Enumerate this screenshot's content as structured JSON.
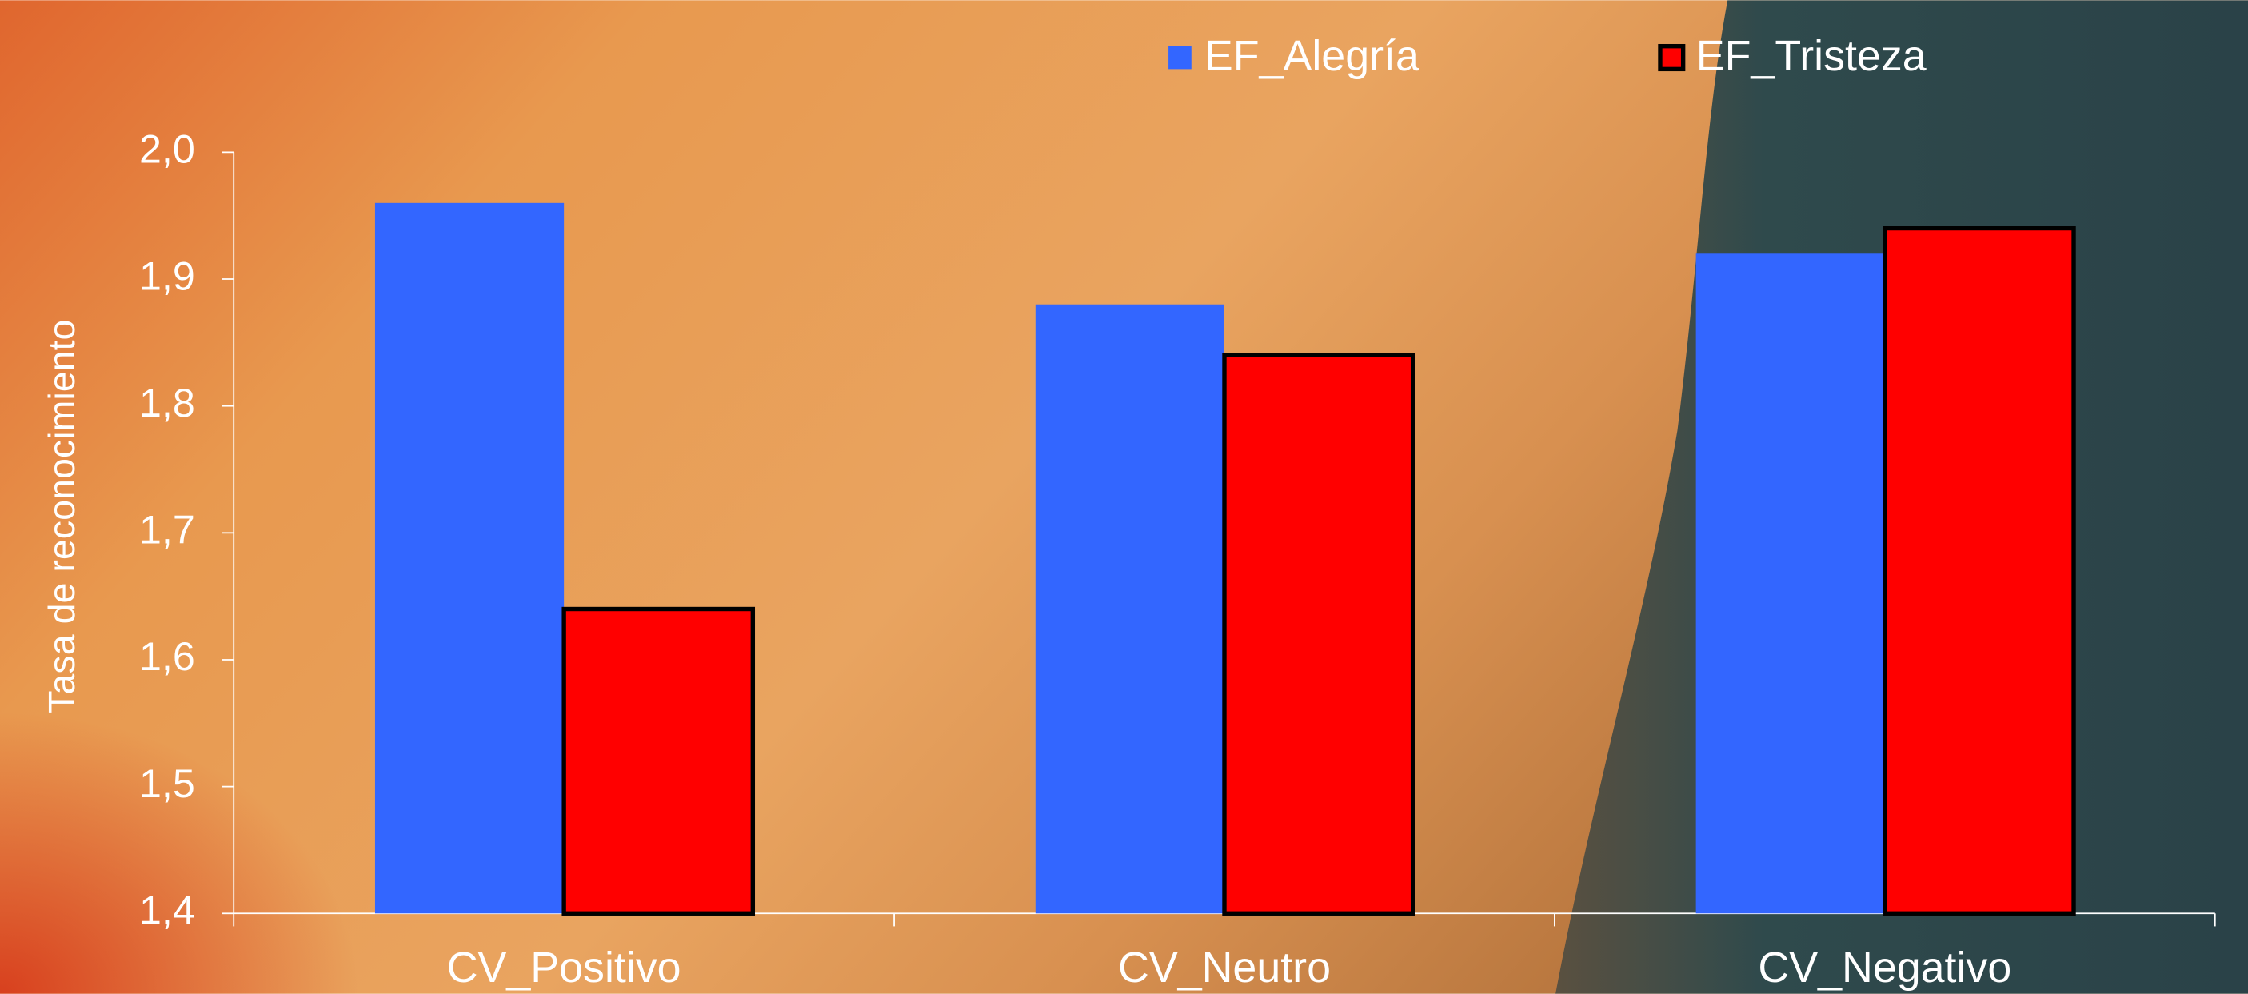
{
  "chart_data": {
    "type": "bar",
    "y_label": "Tasa de reconocimiento",
    "categories": [
      "CV_Positivo",
      "CV_Neutro",
      "CV_Negativo"
    ],
    "series": [
      {
        "name": "EF_Alegría",
        "color": "#3366ff",
        "values": [
          1.96,
          1.88,
          1.92
        ]
      },
      {
        "name": "EF_Tristeza",
        "color": "#ff0000",
        "values": [
          1.64,
          1.84,
          1.94
        ]
      }
    ],
    "ylim": [
      1.4,
      2.0
    ],
    "yticks": [
      {
        "value": 1.4,
        "label": "1,4"
      },
      {
        "value": 1.5,
        "label": "1,5"
      },
      {
        "value": 1.6,
        "label": "1,6"
      },
      {
        "value": 1.7,
        "label": "1,7"
      },
      {
        "value": 1.8,
        "label": "1,8"
      },
      {
        "value": 1.9,
        "label": "1,9"
      },
      {
        "value": 2.0,
        "label": "2,0"
      }
    ],
    "grid": false,
    "legend": "top"
  }
}
